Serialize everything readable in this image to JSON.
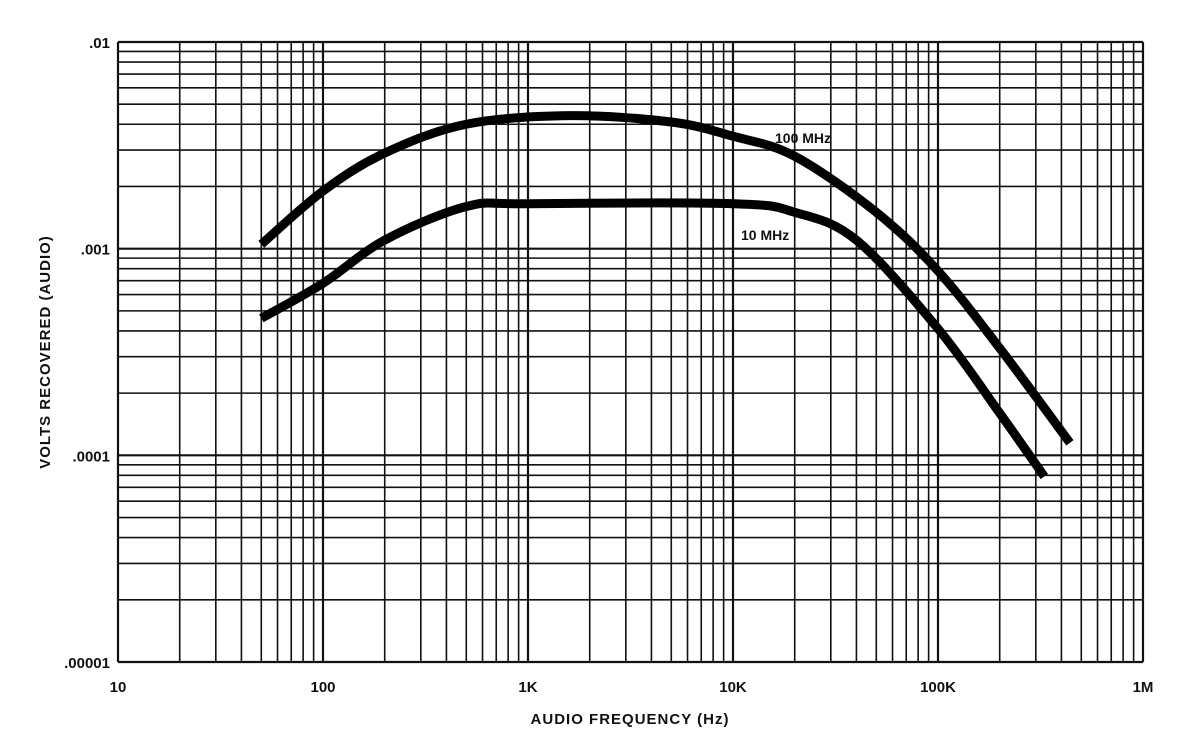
{
  "chart_data": {
    "type": "line",
    "title": "",
    "xlabel": "AUDIO FREQUENCY (Hz)",
    "ylabel": "VOLTS RECOVERED (AUDIO)",
    "xscale": "log",
    "yscale": "log",
    "xlim": [
      10,
      1000000
    ],
    "ylim": [
      1e-05,
      0.01
    ],
    "grid": true,
    "x_ticks": [
      {
        "value": 10,
        "label": "10"
      },
      {
        "value": 100,
        "label": "100"
      },
      {
        "value": 1000,
        "label": "1K"
      },
      {
        "value": 10000,
        "label": "10K"
      },
      {
        "value": 100000,
        "label": "100K"
      },
      {
        "value": 1000000,
        "label": "1M"
      }
    ],
    "y_ticks": [
      {
        "value": 0.01,
        "label": ".01"
      },
      {
        "value": 0.001,
        "label": ".001"
      },
      {
        "value": 0.0001,
        "label": ".0001"
      },
      {
        "value": 1e-05,
        "label": ".00001"
      }
    ],
    "series": [
      {
        "name": "100 MHz",
        "x": [
          50,
          100,
          200,
          500,
          1600,
          5000,
          10000,
          20000,
          50000,
          100000,
          200000,
          440000
        ],
        "y": [
          0.00105,
          0.0019,
          0.0029,
          0.004,
          0.0044,
          0.0041,
          0.0035,
          0.0028,
          0.0015,
          0.00078,
          0.00033,
          0.000115
        ]
      },
      {
        "name": "10 MHz",
        "x": [
          50,
          100,
          200,
          500,
          1000,
          10000,
          20000,
          40000,
          100000,
          200000,
          330000
        ],
        "y": [
          0.00046,
          0.00068,
          0.0011,
          0.0016,
          0.00165,
          0.00165,
          0.0015,
          0.0011,
          0.00041,
          0.00016,
          7.9e-05
        ]
      }
    ]
  }
}
